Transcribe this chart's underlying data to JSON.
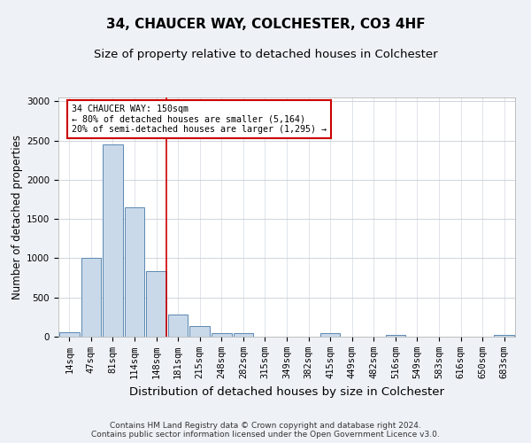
{
  "title1": "34, CHAUCER WAY, COLCHESTER, CO3 4HF",
  "title2": "Size of property relative to detached houses in Colchester",
  "xlabel": "Distribution of detached houses by size in Colchester",
  "ylabel": "Number of detached properties",
  "categories": [
    "14sqm",
    "47sqm",
    "81sqm",
    "114sqm",
    "148sqm",
    "181sqm",
    "215sqm",
    "248sqm",
    "282sqm",
    "315sqm",
    "349sqm",
    "382sqm",
    "415sqm",
    "449sqm",
    "482sqm",
    "516sqm",
    "549sqm",
    "583sqm",
    "616sqm",
    "650sqm",
    "683sqm"
  ],
  "values": [
    62,
    1000,
    2450,
    1650,
    840,
    280,
    130,
    40,
    40,
    0,
    0,
    0,
    40,
    0,
    0,
    28,
    0,
    0,
    0,
    0,
    18
  ],
  "bar_color": "#c9d9ea",
  "bar_edge_color": "#5b87b0",
  "red_line_index": 4,
  "red_line_color": "#cc0000",
  "annotation_text": "34 CHAUCER WAY: 150sqm\n← 80% of detached houses are smaller (5,164)\n20% of semi-detached houses are larger (1,295) →",
  "annotation_box_color": "#ffffff",
  "annotation_box_edge": "#cc0000",
  "ylim": [
    0,
    3050
  ],
  "yticks": [
    0,
    500,
    1000,
    1500,
    2000,
    2500,
    3000
  ],
  "footnote": "Contains HM Land Registry data © Crown copyright and database right 2024.\nContains public sector information licensed under the Open Government Licence v3.0.",
  "bg_color": "#eef2f7",
  "plot_bg_color": "#ffffff",
  "grid_color": "#c8cfd8",
  "title1_fontsize": 11,
  "title2_fontsize": 9.5,
  "axis_label_fontsize": 8.5,
  "tick_fontsize": 7.5,
  "footnote_fontsize": 6.5
}
